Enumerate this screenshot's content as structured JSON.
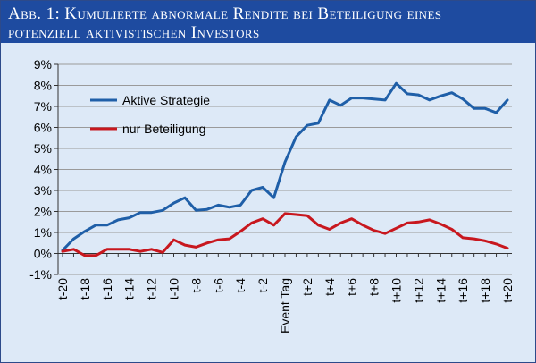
{
  "header": {
    "title_line1": "Abb. 1: Kumulierte abnormale Rendite bei Beteiligung eines",
    "title_line2": "potenziell aktivistischen Investors"
  },
  "chart_data": {
    "type": "line",
    "title": "Abb. 1: Kumulierte abnormale Rendite bei Beteiligung eines potenziell aktivistischen Investors",
    "xlabel": "",
    "ylabel": "",
    "ylim": [
      -1,
      9
    ],
    "y_ticks": [
      "-1%",
      "0%",
      "1%",
      "2%",
      "3%",
      "4%",
      "5%",
      "6%",
      "7%",
      "8%",
      "9%"
    ],
    "grid": "horizontal",
    "legend_position": "top-left",
    "x": [
      "t-20",
      "t-19",
      "t-18",
      "t-17",
      "t-16",
      "t-15",
      "t-14",
      "t-13",
      "t-12",
      "t-11",
      "t-10",
      "t-9",
      "t-8",
      "t-7",
      "t-6",
      "t-5",
      "t-4",
      "t-3",
      "t-2",
      "t-1",
      "Event Tag",
      "t+1",
      "t+2",
      "t+3",
      "t+4",
      "t+5",
      "t+6",
      "t+7",
      "t+8",
      "t+9",
      "t+10",
      "t+11",
      "t+12",
      "t+13",
      "t+14",
      "t+15",
      "t+16",
      "t+17",
      "t+18",
      "t+19",
      "t+20"
    ],
    "x_tick_labels": [
      "t-20",
      "t-18",
      "t-16",
      "t-14",
      "t-12",
      "t-10",
      "t-8",
      "t-6",
      "t-4",
      "t-2",
      "Event Tag",
      "t+2",
      "t+4",
      "t+6",
      "t+8",
      "t+10",
      "t+12",
      "t+14",
      "t+16",
      "t+18",
      "t+20"
    ],
    "series": [
      {
        "name": "Aktive Strategie",
        "color": "#1f5fa8",
        "values": [
          0.15,
          0.7,
          1.05,
          1.35,
          1.35,
          1.6,
          1.7,
          1.95,
          1.95,
          2.05,
          2.4,
          2.65,
          2.05,
          2.1,
          2.3,
          2.2,
          2.3,
          3.0,
          3.15,
          2.65,
          4.35,
          5.55,
          6.1,
          6.2,
          7.3,
          7.05,
          7.4,
          7.4,
          7.35,
          7.3,
          8.1,
          7.6,
          7.55,
          7.3,
          7.5,
          7.65,
          7.35,
          6.9,
          6.9,
          6.7,
          7.3
        ]
      },
      {
        "name": "nur Beteiligung",
        "color": "#c8171e",
        "values": [
          0.1,
          0.2,
          -0.1,
          -0.1,
          0.2,
          0.2,
          0.2,
          0.1,
          0.2,
          0.05,
          0.65,
          0.4,
          0.3,
          0.5,
          0.65,
          0.7,
          1.05,
          1.45,
          1.65,
          1.35,
          1.9,
          1.85,
          1.8,
          1.35,
          1.15,
          1.45,
          1.65,
          1.35,
          1.1,
          0.95,
          1.2,
          1.45,
          1.5,
          1.6,
          1.4,
          1.15,
          0.75,
          0.7,
          0.6,
          0.45,
          0.25
        ]
      }
    ]
  }
}
